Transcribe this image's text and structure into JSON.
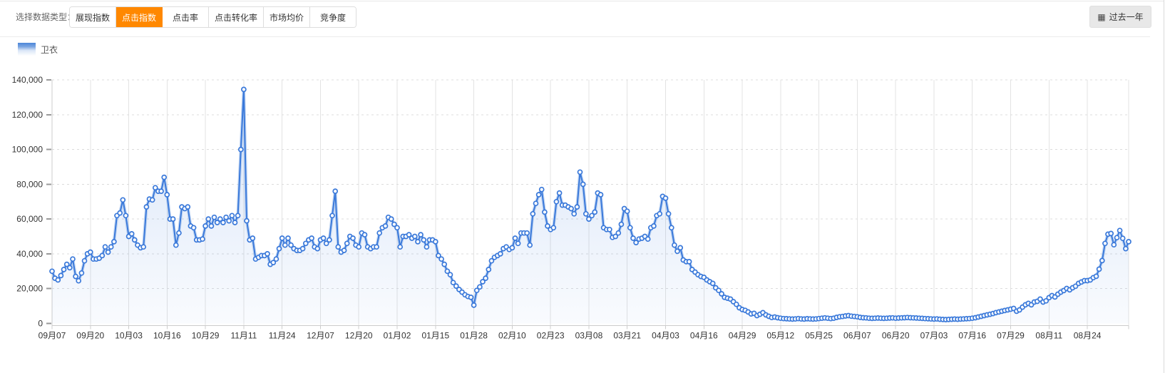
{
  "toolbar": {
    "label": "选择数据类型：",
    "tabs": [
      {
        "label": "展现指数",
        "active": false
      },
      {
        "label": "点击指数",
        "active": true
      },
      {
        "label": "点击率",
        "active": false
      },
      {
        "label": "点击转化率",
        "active": false
      },
      {
        "label": "市场均价",
        "active": false
      },
      {
        "label": "竞争度",
        "active": false
      }
    ],
    "range_button_label": "过去一年",
    "active_tab_color": "#ff8800"
  },
  "legend": [
    {
      "label": "卫衣",
      "color": "#3a79da"
    }
  ],
  "chart_data": {
    "type": "line",
    "title": "",
    "xlabel": "",
    "ylabel": "",
    "legend_position": "top-left",
    "grid": "horizontal-dashed, vertical-solid",
    "point_interval_days": 1,
    "x_tick_every_days": 13,
    "x_tick_labels": [
      "09月07",
      "09月20",
      "10月03",
      "10月16",
      "10月29",
      "11月11",
      "11月24",
      "12月07",
      "12月20",
      "01月02",
      "01月15",
      "01月28",
      "02月10",
      "02月23",
      "03月08",
      "03月21",
      "04月03",
      "04月16",
      "04月29",
      "05月12",
      "05月25",
      "06月07",
      "06月20",
      "07月03",
      "07月16",
      "07月29",
      "08月11",
      "08月24"
    ],
    "ylim": [
      0,
      140000
    ],
    "y_ticks": [
      0,
      20000,
      40000,
      60000,
      80000,
      100000,
      120000,
      140000
    ],
    "y_tick_labels": [
      "0",
      "20,000",
      "40,000",
      "60,000",
      "80,000",
      "100,000",
      "120,000",
      "140,000"
    ],
    "line_color": "#3a79da",
    "series": [
      {
        "name": "卫衣",
        "values": [
          30000,
          26000,
          25000,
          27500,
          31000,
          34000,
          32000,
          37000,
          27000,
          24500,
          29000,
          36000,
          40000,
          41000,
          37000,
          37000,
          37500,
          39000,
          44000,
          41000,
          44000,
          47000,
          62000,
          63500,
          71000,
          62000,
          50000,
          51500,
          48000,
          45000,
          43500,
          44000,
          67000,
          71500,
          71000,
          78000,
          76000,
          76000,
          84000,
          74000,
          60000,
          60000,
          45000,
          52000,
          67000,
          66000,
          67000,
          56000,
          55000,
          48000,
          48000,
          48500,
          56000,
          60000,
          56000,
          61000,
          58000,
          60000,
          58000,
          61000,
          59000,
          62000,
          58000,
          62000,
          100000,
          134500,
          59000,
          48000,
          49000,
          37000,
          38000,
          39000,
          39000,
          40000,
          34000,
          35000,
          37000,
          43000,
          49000,
          45000,
          49000,
          45000,
          43000,
          42000,
          42000,
          43000,
          46000,
          48000,
          49000,
          44000,
          43000,
          48000,
          49000,
          46000,
          48000,
          62000,
          76000,
          44000,
          41000,
          42000,
          46000,
          50000,
          49000,
          45000,
          44000,
          52000,
          51000,
          44000,
          43000,
          44000,
          44000,
          52000,
          55000,
          56000,
          61000,
          60000,
          57000,
          55000,
          44000,
          50000,
          50000,
          51000,
          49000,
          50000,
          47000,
          51000,
          48000,
          44000,
          48000,
          48000,
          47000,
          39000,
          37000,
          34000,
          30000,
          28000,
          23500,
          21500,
          19500,
          18000,
          16500,
          15500,
          15000,
          10500,
          19000,
          21000,
          24000,
          26000,
          31000,
          36000,
          38000,
          39000,
          40000,
          43000,
          44000,
          42500,
          43500,
          49000,
          46000,
          52000,
          52000,
          52000,
          45000,
          63000,
          69000,
          74000,
          77000,
          64000,
          56000,
          54000,
          55000,
          70000,
          75000,
          68000,
          68000,
          67000,
          66000,
          63000,
          67000,
          87000,
          80000,
          63000,
          60000,
          62000,
          64000,
          75000,
          74000,
          55000,
          54000,
          54000,
          49500,
          50000,
          52000,
          57000,
          66000,
          64500,
          55000,
          49000,
          46500,
          48500,
          49000,
          50000,
          48500,
          55000,
          56000,
          62000,
          63000,
          73000,
          72000,
          63000,
          55000,
          45000,
          41500,
          43500,
          36500,
          35500,
          35500,
          31000,
          29500,
          28000,
          27000,
          26500,
          25000,
          24000,
          23000,
          20500,
          19000,
          17000,
          15000,
          14500,
          14000,
          12500,
          11000,
          9000,
          8000,
          7500,
          6600,
          5500,
          5800,
          4500,
          5300,
          6200,
          4900,
          4100,
          3400,
          3700,
          3300,
          3000,
          2800,
          2700,
          2600,
          2500,
          2600,
          2800,
          2600,
          2500,
          2700,
          2600,
          2500,
          2600,
          2800,
          3000,
          3200,
          3000,
          2800,
          3000,
          3500,
          3800,
          4000,
          4300,
          4500,
          4200,
          4000,
          3800,
          3500,
          3300,
          3200,
          3000,
          2900,
          3000,
          3100,
          3000,
          2900,
          3000,
          3100,
          3200,
          3000,
          3100,
          3200,
          3300,
          3400,
          3300,
          3200,
          3100,
          3000,
          2900,
          2800,
          2700,
          2600,
          2500,
          2600,
          2400,
          2300,
          2200,
          2300,
          2400,
          2500,
          2400,
          2500,
          2600,
          2700,
          2800,
          3000,
          3300,
          3700,
          4100,
          4500,
          4900,
          5300,
          5700,
          6200,
          6600,
          7000,
          7400,
          7800,
          8200,
          8600,
          7000,
          7800,
          9400,
          10700,
          11500,
          10700,
          12300,
          12700,
          14000,
          12300,
          13000,
          14800,
          16000,
          15200,
          16800,
          18000,
          18900,
          20100,
          19300,
          20500,
          21400,
          23000,
          23800,
          24600,
          24600,
          25000,
          26300,
          27100,
          31200,
          36100,
          46000,
          51300,
          51700,
          45200,
          49300,
          53400,
          48900,
          43000,
          47000
        ]
      }
    ]
  }
}
